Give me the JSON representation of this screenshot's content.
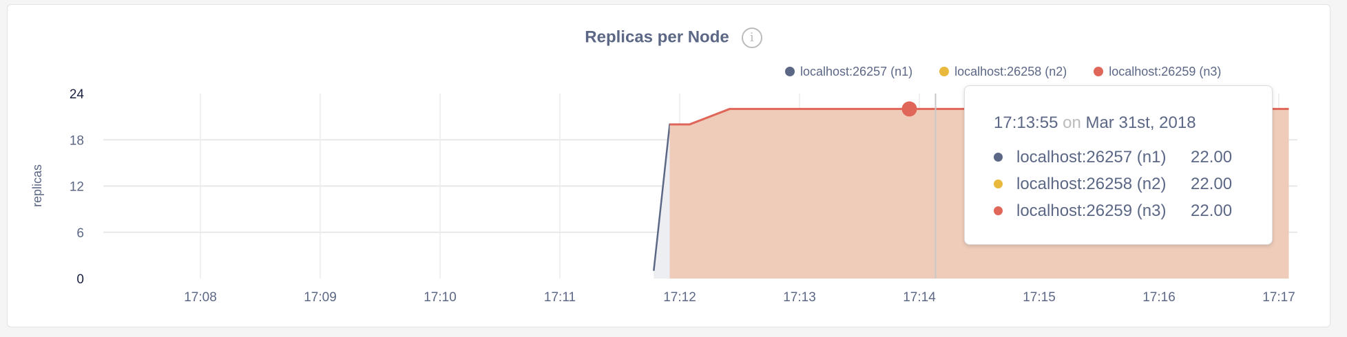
{
  "chart_data": {
    "type": "area",
    "title": "Replicas per Node",
    "ylabel": "replicas",
    "xlabel": "",
    "ylim": [
      0,
      24
    ],
    "yticks": [
      "0",
      "6",
      "12",
      "18",
      "24"
    ],
    "xlim": [
      "17:07:15",
      "17:17:20"
    ],
    "xticks": [
      "17:08",
      "17:09",
      "17:10",
      "17:11",
      "17:12",
      "17:13",
      "17:14",
      "17:15",
      "17:16",
      "17:17"
    ],
    "grid": true,
    "legend_position": "top",
    "series": [
      {
        "name": "localhost:26257 (n1)",
        "color": "#5b6785",
        "points": [
          [
            "17:11:47",
            1
          ],
          [
            "17:11:55",
            20
          ],
          [
            "17:12:05",
            20
          ],
          [
            "17:12:25",
            22
          ],
          [
            "17:17:05",
            22
          ]
        ]
      },
      {
        "name": "localhost:26258 (n2)",
        "color": "#e8b93c",
        "points": [
          [
            "17:11:55",
            20
          ],
          [
            "17:12:05",
            20
          ],
          [
            "17:12:25",
            22
          ],
          [
            "17:17:05",
            22
          ]
        ]
      },
      {
        "name": "localhost:26259 (n3)",
        "color": "#e0665a",
        "points": [
          [
            "17:11:55",
            20
          ],
          [
            "17:12:05",
            20
          ],
          [
            "17:12:25",
            22
          ],
          [
            "17:17:05",
            22
          ]
        ]
      }
    ],
    "hover": {
      "time": "17:13:55",
      "value": 22
    }
  },
  "tooltip": {
    "time": "17:13:55",
    "on": "on",
    "date": "Mar 31st, 2018",
    "rows": [
      {
        "label": "localhost:26257 (n1)",
        "value": "22.00"
      },
      {
        "label": "localhost:26258 (n2)",
        "value": "22.00"
      },
      {
        "label": "localhost:26259 (n3)",
        "value": "22.00"
      }
    ]
  },
  "info_icon": "i"
}
